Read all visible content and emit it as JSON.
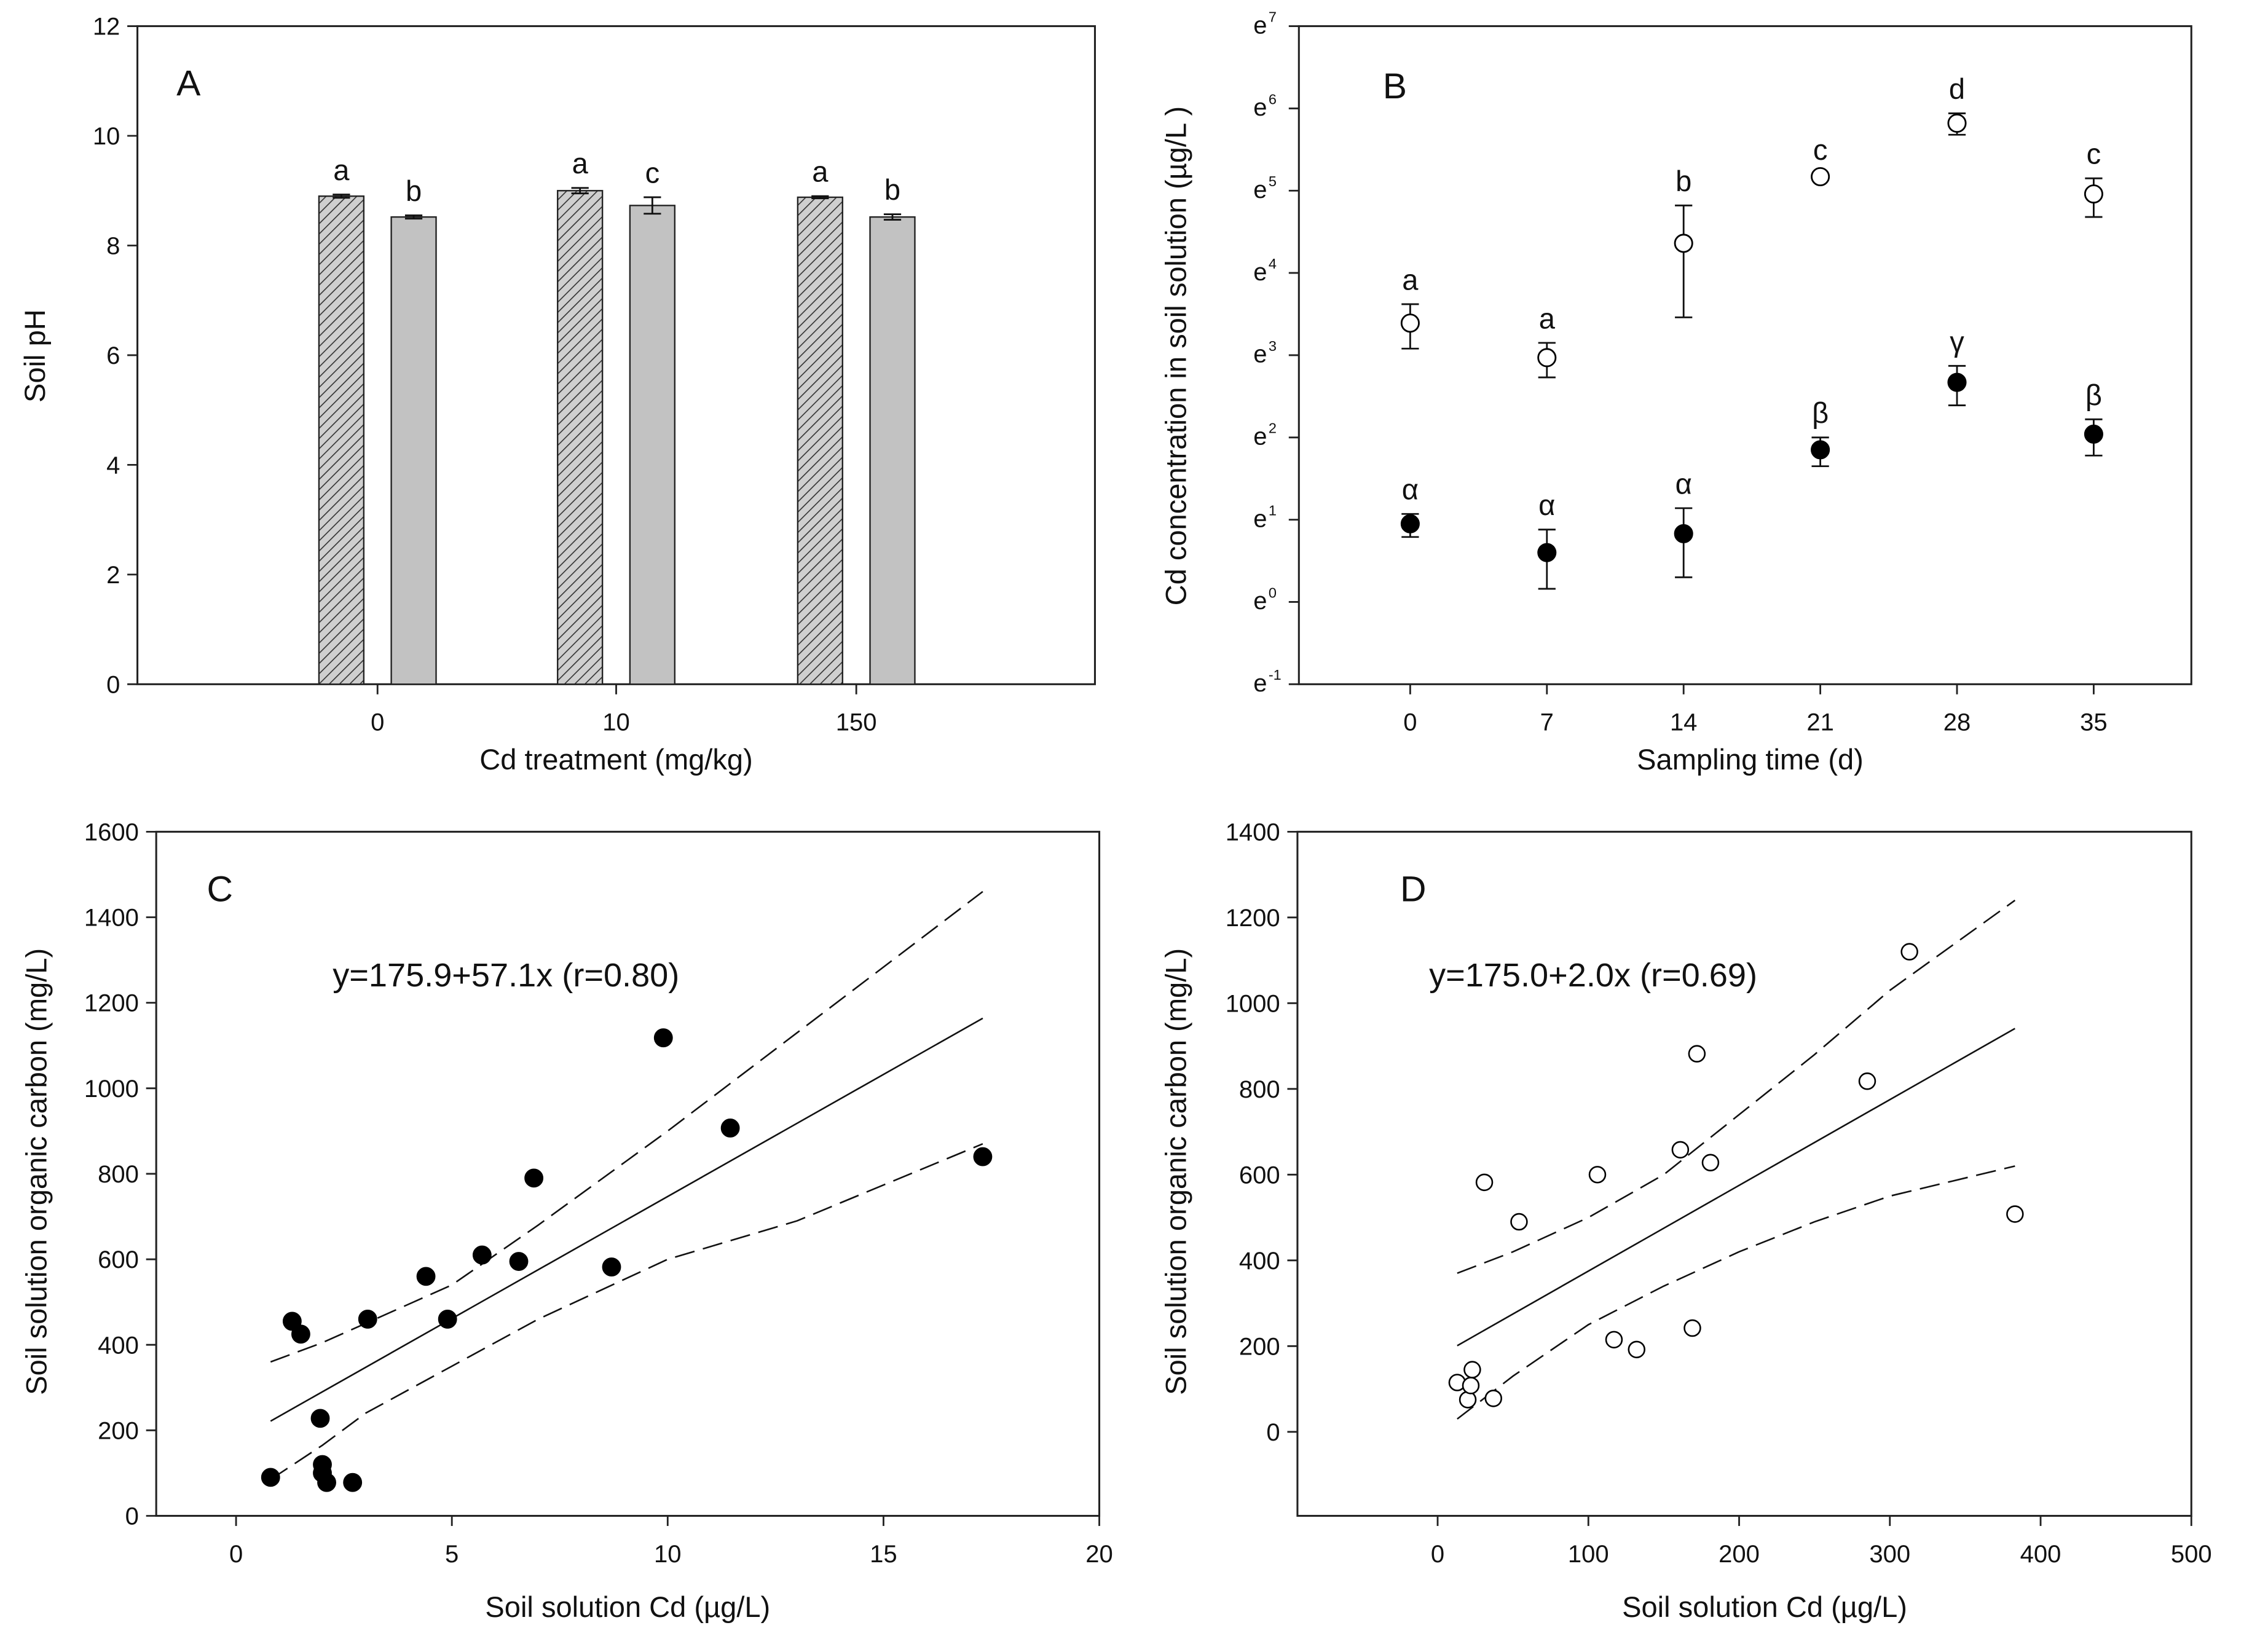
{
  "chart_data": [
    {
      "id": "A",
      "type": "bar",
      "panel_label": "A",
      "xlabel": "Cd treatment (mg/kg)",
      "ylabel": "Soil pH",
      "ylim": [
        0,
        12
      ],
      "yticks": [
        0,
        2,
        4,
        6,
        8,
        10,
        12
      ],
      "categories": [
        "0",
        "10",
        "150"
      ],
      "series": [
        {
          "name": "hatched",
          "pattern": "hatched",
          "values": [
            8.9,
            9.0,
            8.88
          ],
          "errors": [
            0.03,
            0.05,
            0.02
          ],
          "letters": [
            "a",
            "a",
            "a"
          ]
        },
        {
          "name": "gray",
          "pattern": "solid",
          "values": [
            8.52,
            8.73,
            8.52
          ],
          "errors": [
            0.03,
            0.15,
            0.05
          ],
          "letters": [
            "b",
            "c",
            "b"
          ]
        }
      ]
    },
    {
      "id": "B",
      "type": "scatter",
      "panel_label": "B",
      "xlabel": "Sampling time (d)",
      "ylabel": "Cd concentration in soil solution (µg/L )",
      "y_scale": "ln (values are exponents of e)",
      "ylim_exponent": [
        -1,
        7
      ],
      "ytick_base": "e",
      "yticks_exponent": [
        -1,
        0,
        1,
        2,
        3,
        4,
        5,
        6,
        7
      ],
      "xlim": [
        -5.7,
        40
      ],
      "xticks": [
        0,
        7,
        14,
        21,
        28,
        35
      ],
      "series": [
        {
          "name": "open",
          "marker": "open-circle",
          "x": [
            0,
            7,
            14,
            21,
            28,
            35
          ],
          "y": [
            3.39,
            2.97,
            4.36,
            5.17,
            5.82,
            4.96
          ],
          "err_high": [
            3.62,
            3.15,
            4.82,
            5.2,
            5.94,
            5.15
          ],
          "err_low": [
            3.08,
            2.73,
            3.46,
            5.14,
            5.68,
            4.68
          ],
          "letters": [
            "a",
            "a",
            "b",
            "c",
            "d",
            "c"
          ]
        },
        {
          "name": "filled",
          "marker": "filled-circle",
          "x": [
            0,
            7,
            14,
            21,
            28,
            35
          ],
          "y": [
            0.95,
            0.6,
            0.83,
            1.85,
            2.67,
            2.04
          ],
          "err_high": [
            1.07,
            0.88,
            1.14,
            2.0,
            2.87,
            2.22
          ],
          "err_low": [
            0.79,
            0.16,
            0.3,
            1.65,
            2.39,
            1.78
          ],
          "letters": [
            "α",
            "α",
            "α",
            "β",
            "γ",
            "β"
          ]
        }
      ]
    },
    {
      "id": "C",
      "type": "scatter",
      "panel_label": "C",
      "xlabel": "Soil solution Cd (µg/L)",
      "ylabel": "Soil solution organic carbon (mg/L)",
      "equation": "y=175.9+57.1x (r=0.80)",
      "xlim": [
        -1.85,
        20
      ],
      "ylim": [
        0,
        1600
      ],
      "xticks": [
        0,
        5,
        10,
        15,
        20
      ],
      "yticks": [
        0,
        200,
        400,
        600,
        800,
        1000,
        1200,
        1400,
        1600
      ],
      "marker": "filled-circle",
      "points": [
        [
          0.8,
          90
        ],
        [
          1.3,
          455
        ],
        [
          1.5,
          425
        ],
        [
          1.95,
          228
        ],
        [
          2.0,
          120
        ],
        [
          2.0,
          100
        ],
        [
          2.1,
          78
        ],
        [
          2.7,
          78
        ],
        [
          3.05,
          460
        ],
        [
          4.4,
          560
        ],
        [
          4.9,
          460
        ],
        [
          5.7,
          610
        ],
        [
          6.55,
          595
        ],
        [
          6.9,
          790
        ],
        [
          8.7,
          582
        ],
        [
          9.9,
          1118
        ],
        [
          11.45,
          907
        ],
        [
          17.3,
          840
        ]
      ],
      "fit": {
        "intercept": 175.9,
        "slope": 57.1,
        "x_range": [
          0.8,
          17.3
        ]
      },
      "upper_band": [
        [
          0.8,
          360
        ],
        [
          2,
          405
        ],
        [
          3,
          450
        ],
        [
          5,
          540
        ],
        [
          7,
          680
        ],
        [
          10,
          900
        ],
        [
          13,
          1130
        ],
        [
          17.3,
          1460
        ]
      ],
      "lower_band": [
        [
          0.8,
          85
        ],
        [
          2,
          165
        ],
        [
          3,
          240
        ],
        [
          5,
          350
        ],
        [
          7,
          460
        ],
        [
          10,
          600
        ],
        [
          13,
          690
        ],
        [
          17.3,
          870
        ]
      ]
    },
    {
      "id": "D",
      "type": "scatter",
      "panel_label": "D",
      "xlabel": "Soil solution Cd (µg/L)",
      "ylabel": "Soil solution organic carbon (mg/L)",
      "equation": "y=175.0+2.0x (r=0.69)",
      "xlim": [
        -93,
        500
      ],
      "ylim": [
        -196,
        1400
      ],
      "xticks": [
        0,
        100,
        200,
        300,
        400,
        500
      ],
      "yticks": [
        0,
        200,
        400,
        600,
        800,
        1000,
        1200,
        1400
      ],
      "marker": "open-circle",
      "points": [
        [
          13,
          115
        ],
        [
          20,
          75
        ],
        [
          22,
          108
        ],
        [
          23,
          145
        ],
        [
          37,
          78
        ],
        [
          31,
          582
        ],
        [
          54,
          490
        ],
        [
          106,
          600
        ],
        [
          117,
          215
        ],
        [
          132,
          192
        ],
        [
          161,
          658
        ],
        [
          169,
          242
        ],
        [
          172,
          882
        ],
        [
          181,
          628
        ],
        [
          285,
          818
        ],
        [
          313,
          1120
        ],
        [
          383,
          508
        ]
      ],
      "fit": {
        "intercept": 175.0,
        "slope": 2.0,
        "x_range": [
          13,
          383
        ]
      },
      "upper_band": [
        [
          13,
          370
        ],
        [
          50,
          420
        ],
        [
          100,
          500
        ],
        [
          150,
          600
        ],
        [
          200,
          740
        ],
        [
          250,
          880
        ],
        [
          300,
          1030
        ],
        [
          383,
          1240
        ]
      ],
      "lower_band": [
        [
          13,
          30
        ],
        [
          50,
          130
        ],
        [
          100,
          250
        ],
        [
          150,
          340
        ],
        [
          200,
          420
        ],
        [
          250,
          490
        ],
        [
          300,
          550
        ],
        [
          383,
          620
        ]
      ]
    }
  ]
}
